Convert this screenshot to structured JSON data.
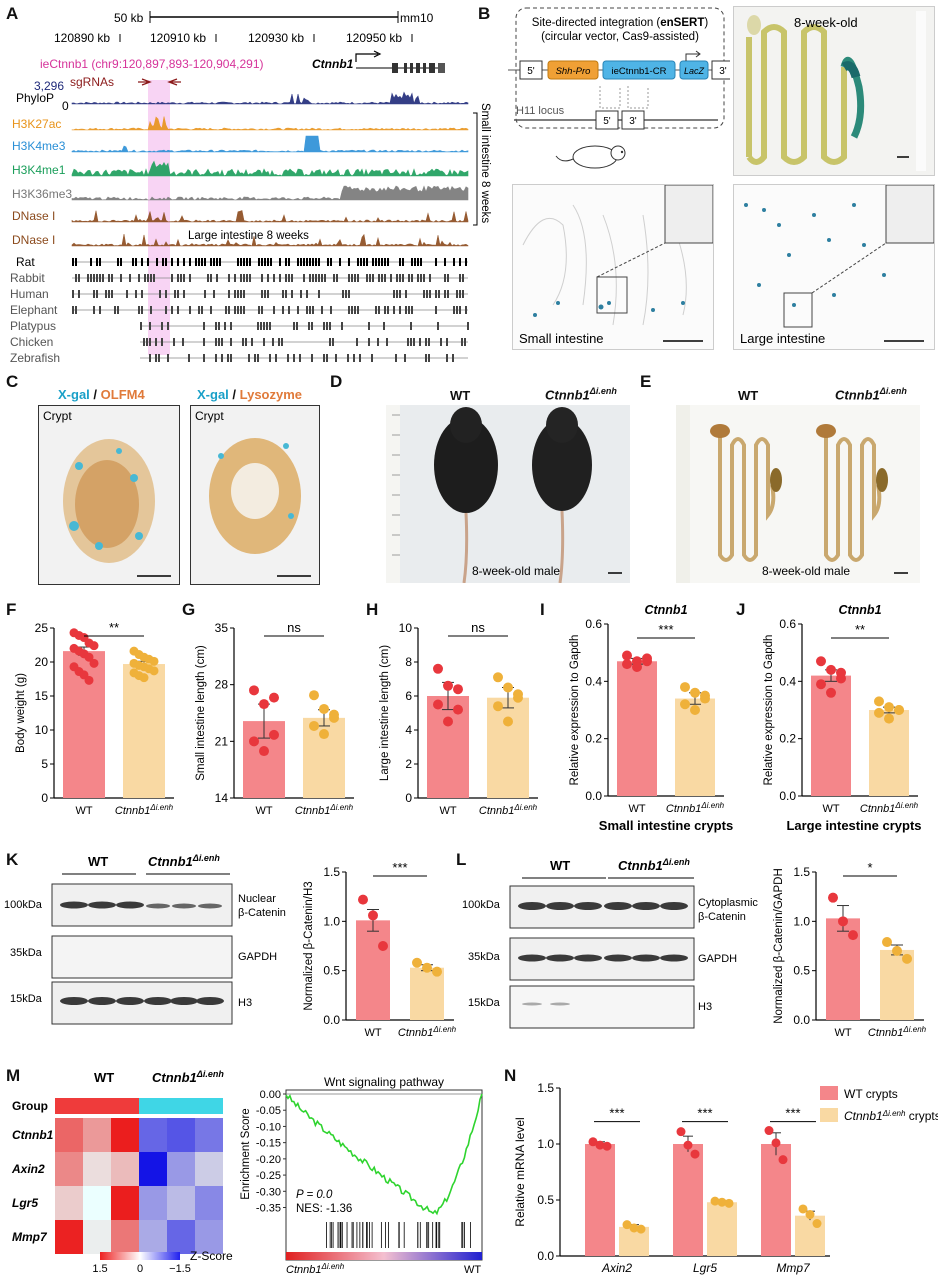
{
  "panels": {
    "A": {
      "label": "A",
      "scale_label": "50 kb",
      "assembly": "mm10",
      "coords": [
        "120890 kb",
        "120910 kb",
        "120930 kb",
        "120950 kb"
      ],
      "enhancer_label": "ieCtnnb1 (chr9:120,897,893-120,904,291)",
      "gene": "Ctnnb1",
      "sgrnas": "sgRNAs",
      "phylop_max": "3,296",
      "phylop_min": "0",
      "tracks": [
        {
          "name": "PhyloP",
          "color": "#1f2a7a"
        },
        {
          "name": "H3K27ac",
          "color": "#e8931a"
        },
        {
          "name": "H3K4me3",
          "color": "#2a8fd6"
        },
        {
          "name": "H3K4me1",
          "color": "#1a9e5a"
        },
        {
          "name": "H3K36me3",
          "color": "#777777"
        },
        {
          "name": "DNase I",
          "color": "#8b4a1c"
        },
        {
          "name": "DNase I",
          "color": "#8b4a1c"
        }
      ],
      "small_intestine_label": "Small intestine 8 weeks",
      "large_intestine_label": "Large intestine 8 weeks",
      "species": [
        "Rat",
        "Rabbit",
        "Human",
        "Elephant",
        "Platypus",
        "Chicken",
        "Zebrafish"
      ]
    },
    "B": {
      "label": "B",
      "method_title_1": "Site-directed integration (",
      "method_bold": "enSERT",
      "method_title_1b": ")",
      "method_title_2": "(circular vector, Cas9-assisted)",
      "construct": [
        "5'",
        "Shh-Pro",
        "ieCtnnb1-CR",
        "LacZ",
        "3'"
      ],
      "locus": "H11 locus",
      "locus_arms": [
        "5'",
        "3'"
      ],
      "age_label": "8-week-old",
      "small_intestine": "Small intestine",
      "large_intestine": "Large intestine"
    },
    "C": {
      "label": "C",
      "left_title_a": "X-gal",
      "left_title_b": "OLFM4",
      "right_title_a": "X-gal",
      "right_title_b": "Lysozyme",
      "crypt": "Crypt",
      "sep": " / "
    },
    "D": {
      "label": "D",
      "wt": "WT",
      "ko_base": "Ctnnb1",
      "ko_sup": "Δi.enh",
      "caption": "8-week-old male"
    },
    "E": {
      "label": "E",
      "wt": "WT",
      "ko_base": "Ctnnb1",
      "ko_sup": "Δi.enh",
      "caption": "8-week-old male"
    },
    "F": {
      "label": "F",
      "sig": "**"
    },
    "G": {
      "label": "G",
      "sig": "ns"
    },
    "H": {
      "label": "H",
      "sig": "ns"
    },
    "I": {
      "label": "I",
      "gene": "Ctnnb1",
      "subtitle": "Small intestine crypts",
      "sig": "***"
    },
    "J": {
      "label": "J",
      "gene": "Ctnnb1",
      "subtitle": "Large intestine crypts",
      "sig": "**"
    },
    "K": {
      "label": "K",
      "wt": "WT",
      "ko_base": "Ctnnb1",
      "ko_sup": "Δi.enh",
      "markers": [
        "100kDa",
        "35kDa",
        "15kDa"
      ],
      "bands": [
        "Nuclear",
        "β-Catenin",
        "GAPDH",
        "H3"
      ],
      "sig": "***"
    },
    "L": {
      "label": "L",
      "wt": "WT",
      "ko_base": "Ctnnb1",
      "ko_sup": "Δi.enh",
      "markers": [
        "100kDa",
        "35kDa",
        "15kDa"
      ],
      "bands": [
        "Cytoplasmic",
        "β-Catenin",
        "GAPDH",
        "H3"
      ],
      "sig": "*"
    },
    "M": {
      "label": "M",
      "group_label": "Group",
      "wt": "WT",
      "ko_base": "Ctnnb1",
      "ko_sup": "Δi.enh",
      "genes": [
        "Ctnnb1",
        "Axin2",
        "Lgr5",
        "Mmp7"
      ],
      "heatmap": [
        [
          0.9,
          0.6,
          1.5,
          -0.9,
          -1.0,
          -0.8
        ],
        [
          0.7,
          0.2,
          0.4,
          -1.6,
          -0.6,
          -0.3
        ],
        [
          0.3,
          0.0,
          1.5,
          -0.6,
          -0.4,
          -0.7
        ],
        [
          1.3,
          0.1,
          0.8,
          -0.5,
          -0.9,
          -0.6
        ]
      ],
      "zscore_label": "Z-Score",
      "zscore_ticks": [
        "1.5",
        "0",
        "−1.5"
      ],
      "gsea_title": "Wnt signaling pathway",
      "gsea_ylabel": "Enrichment Score",
      "gsea_yticks": [
        "0.00",
        "-0.05",
        "-0.10",
        "-0.15",
        "-0.20",
        "-0.25",
        "-0.30",
        "-0.35"
      ],
      "pval": "P = 0.0",
      "nes": "NES: -1.36",
      "gsea_left": "Ctnnb1",
      "gsea_left_sup": "Δi.enh",
      "gsea_right": "WT"
    },
    "N": {
      "label": "N",
      "sig": [
        "***",
        "***",
        "***"
      ]
    }
  },
  "colors": {
    "wt": "#f4868a",
    "ko": "#f9d9a3",
    "wt_dot": "#e8373d",
    "ko_dot": "#efb13a"
  },
  "chart_data": [
    {
      "id": "F",
      "type": "bar",
      "categories": [
        "WT",
        "Ctnnb1Δi.enh"
      ],
      "values": [
        21.6,
        19.7
      ],
      "errors": [
        0.6,
        0.4
      ],
      "ylabel": "Body weight (g)",
      "ylim": [
        0,
        25
      ],
      "yticks": [
        0,
        5,
        10,
        15,
        20,
        25
      ],
      "points": [
        [
          24.3,
          23.9,
          23.6,
          22.8,
          22.4,
          22.0,
          21.6,
          21.2,
          20.7,
          19.8,
          19.3,
          18.6,
          18.1,
          17.3
        ],
        [
          21.6,
          21.1,
          20.7,
          20.4,
          20.1,
          19.8,
          19.5,
          19.3,
          19.0,
          18.7,
          18.4,
          18.0,
          17.7
        ]
      ]
    },
    {
      "id": "G",
      "type": "bar",
      "categories": [
        "WT",
        "Ctnnb1Δi.enh"
      ],
      "values": [
        23.5,
        23.9
      ],
      "errors": [
        2.1,
        1.0
      ],
      "ylabel": "Small intestine length (cm)",
      "ylim": [
        14,
        35
      ],
      "yticks": [
        14,
        21,
        28,
        35
      ],
      "points": [
        [
          27.3,
          25.6,
          21.8,
          21.0,
          19.8,
          26.4
        ],
        [
          26.7,
          25.0,
          24.3,
          22.9,
          21.9,
          23.9
        ]
      ]
    },
    {
      "id": "H",
      "type": "bar",
      "categories": [
        "WT",
        "Ctnnb1Δi.enh"
      ],
      "values": [
        6.0,
        5.9
      ],
      "errors": [
        0.8,
        0.6
      ],
      "ylabel": "Large intestine length (cm)",
      "ylim": [
        0,
        10
      ],
      "yticks": [
        0,
        2,
        4,
        6,
        8,
        10
      ],
      "points": [
        [
          7.6,
          6.6,
          6.4,
          5.5,
          4.5,
          5.2
        ],
        [
          7.1,
          6.5,
          5.9,
          5.4,
          4.5,
          6.1
        ]
      ]
    },
    {
      "id": "I",
      "type": "bar",
      "categories": [
        "WT",
        "Ctnnb1Δi.enh"
      ],
      "values": [
        0.47,
        0.34
      ],
      "errors": [
        0.01,
        0.02
      ],
      "ylabel": "Relative expression to Gapdh",
      "ylim": [
        0,
        0.6
      ],
      "yticks": [
        0.0,
        0.2,
        0.4,
        0.6
      ],
      "points": [
        [
          0.49,
          0.47,
          0.47,
          0.46,
          0.45,
          0.48
        ],
        [
          0.38,
          0.36,
          0.34,
          0.32,
          0.3,
          0.35
        ]
      ]
    },
    {
      "id": "J",
      "type": "bar",
      "categories": [
        "WT",
        "Ctnnb1Δi.enh"
      ],
      "values": [
        0.42,
        0.3
      ],
      "errors": [
        0.02,
        0.01
      ],
      "ylabel": "Relative expression to Gapdh",
      "ylim": [
        0,
        0.6
      ],
      "yticks": [
        0.0,
        0.2,
        0.4,
        0.6
      ],
      "points": [
        [
          0.47,
          0.44,
          0.41,
          0.39,
          0.36,
          0.43
        ],
        [
          0.33,
          0.31,
          0.3,
          0.29,
          0.27,
          0.3
        ]
      ]
    },
    {
      "id": "K",
      "type": "bar",
      "categories": [
        "WT",
        "Ctnnb1Δi.enh"
      ],
      "values": [
        1.01,
        0.53
      ],
      "errors": [
        0.11,
        0.03
      ],
      "ylabel": "Normalized β-Catenin/H3",
      "ylim": [
        0,
        1.5
      ],
      "yticks": [
        0.0,
        0.5,
        1.0,
        1.5
      ],
      "points": [
        [
          1.22,
          1.06,
          0.75
        ],
        [
          0.58,
          0.53,
          0.49
        ]
      ]
    },
    {
      "id": "L",
      "type": "bar",
      "categories": [
        "WT",
        "Ctnnb1Δi.enh"
      ],
      "values": [
        1.03,
        0.71
      ],
      "errors": [
        0.13,
        0.05
      ],
      "ylabel": "Normalized β-Catenin/GAPDH",
      "ylim": [
        0,
        1.5
      ],
      "yticks": [
        0.0,
        0.5,
        1.0,
        1.5
      ],
      "points": [
        [
          1.24,
          1.0,
          0.86
        ],
        [
          0.79,
          0.7,
          0.62
        ]
      ]
    },
    {
      "id": "N",
      "type": "bar",
      "categories": [
        "Axin2",
        "Lgr5",
        "Mmp7"
      ],
      "ylabel": "Relative mRNA level",
      "ylim": [
        0,
        1.5
      ],
      "yticks": [
        0.0,
        0.5,
        1.0,
        1.5
      ],
      "series": [
        {
          "name": "WT crypts",
          "values": [
            1.0,
            1.0,
            1.0
          ],
          "errors": [
            0.02,
            0.07,
            0.1
          ],
          "points": [
            [
              1.02,
              0.99,
              0.98
            ],
            [
              1.11,
              0.99,
              0.91
            ],
            [
              1.12,
              1.01,
              0.86
            ]
          ]
        },
        {
          "name": "Ctnnb1Δi.enh crypts",
          "values": [
            0.26,
            0.48,
            0.36
          ],
          "errors": [
            0.02,
            0.01,
            0.04
          ],
          "points": [
            [
              0.28,
              0.25,
              0.24
            ],
            [
              0.49,
              0.48,
              0.47
            ],
            [
              0.42,
              0.37,
              0.29
            ]
          ]
        }
      ]
    }
  ]
}
